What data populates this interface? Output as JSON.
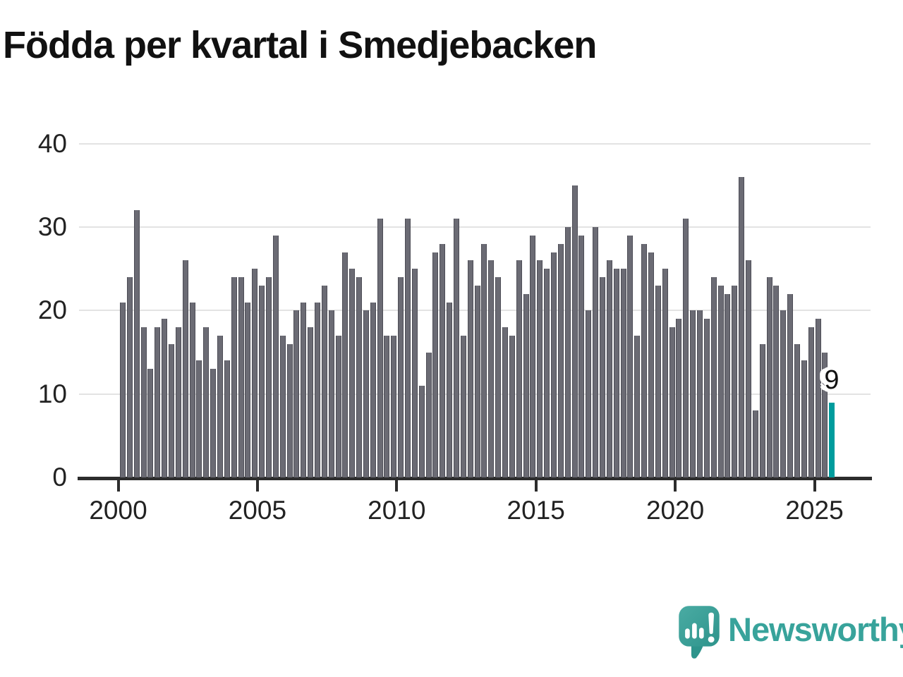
{
  "header": {
    "title": "Födda per kvartal i Smedjebacken"
  },
  "chart_data": {
    "type": "bar",
    "title": "Födda per kvartal i Smedjebacken",
    "ylabel": "",
    "xlabel": "",
    "ylim": [
      0,
      42
    ],
    "grid": "horizontal",
    "legend": "none",
    "bar_color": "#6b6b74",
    "highlight_color": "#009c9d",
    "highlight_index": 102,
    "annotation": {
      "text": "9",
      "target": "2025K3"
    },
    "categories": [
      "2000K1",
      "2000K2",
      "2000K3",
      "2000K4",
      "2001K1",
      "2001K2",
      "2001K3",
      "2001K4",
      "2002K1",
      "2002K2",
      "2002K3",
      "2002K4",
      "2003K1",
      "2003K2",
      "2003K3",
      "2003K4",
      "2004K1",
      "2004K2",
      "2004K3",
      "2004K4",
      "2005K1",
      "2005K2",
      "2005K3",
      "2005K4",
      "2006K1",
      "2006K2",
      "2006K3",
      "2006K4",
      "2007K1",
      "2007K2",
      "2007K3",
      "2007K4",
      "2008K1",
      "2008K2",
      "2008K3",
      "2008K4",
      "2009K1",
      "2009K2",
      "2009K3",
      "2009K4",
      "2010K1",
      "2010K2",
      "2010K3",
      "2010K4",
      "2011K1",
      "2011K2",
      "2011K3",
      "2011K4",
      "2012K1",
      "2012K2",
      "2012K3",
      "2012K4",
      "2013K1",
      "2013K2",
      "2013K3",
      "2013K4",
      "2014K1",
      "2014K2",
      "2014K3",
      "2014K4",
      "2015K1",
      "2015K2",
      "2015K3",
      "2015K4",
      "2016K1",
      "2016K2",
      "2016K3",
      "2016K4",
      "2017K1",
      "2017K2",
      "2017K3",
      "2017K4",
      "2018K1",
      "2018K2",
      "2018K3",
      "2018K4",
      "2019K1",
      "2019K2",
      "2019K3",
      "2019K4",
      "2020K1",
      "2020K2",
      "2020K3",
      "2020K4",
      "2021K1",
      "2021K2",
      "2021K3",
      "2021K4",
      "2022K1",
      "2022K2",
      "2022K3",
      "2022K4",
      "2023K1",
      "2023K2",
      "2023K3",
      "2023K4",
      "2024K1",
      "2024K2",
      "2024K3",
      "2024K4",
      "2025K1",
      "2025K2",
      "2025K3"
    ],
    "values": [
      21,
      24,
      32,
      18,
      13,
      18,
      19,
      16,
      18,
      26,
      21,
      14,
      18,
      13,
      17,
      14,
      24,
      24,
      21,
      25,
      23,
      24,
      29,
      17,
      16,
      20,
      21,
      18,
      21,
      23,
      20,
      17,
      27,
      25,
      24,
      20,
      21,
      31,
      17,
      17,
      24,
      31,
      25,
      11,
      15,
      27,
      28,
      21,
      31,
      17,
      26,
      23,
      28,
      26,
      24,
      18,
      17,
      26,
      22,
      29,
      26,
      25,
      27,
      28,
      30,
      35,
      29,
      20,
      30,
      24,
      26,
      25,
      25,
      29,
      17,
      28,
      27,
      23,
      25,
      18,
      19,
      31,
      20,
      20,
      19,
      24,
      23,
      22,
      23,
      36,
      26,
      8,
      16,
      24,
      23,
      20,
      22,
      16,
      14,
      18,
      19,
      15,
      9
    ]
  },
  "axes": {
    "y_tick_values": [
      40,
      30,
      20,
      10,
      0
    ],
    "y_tick_labels": [
      "40",
      "30",
      "20",
      "10",
      "0"
    ],
    "x_tick_labels": [
      "2000",
      "2005",
      "2010",
      "2015",
      "2020",
      "2025"
    ]
  },
  "annotation": {
    "label": "9"
  },
  "branding": {
    "logo_text": "Newsworthy",
    "logo_icon": "speech-bubble-bar-chart-icon"
  },
  "colors": {
    "bar": "#6b6b74",
    "highlight": "#009c9d",
    "grid": "#e3e3e3",
    "axis": "#2d2d2d",
    "text": "#222222",
    "title": "#111111",
    "brand_teal": "#38a39b"
  }
}
